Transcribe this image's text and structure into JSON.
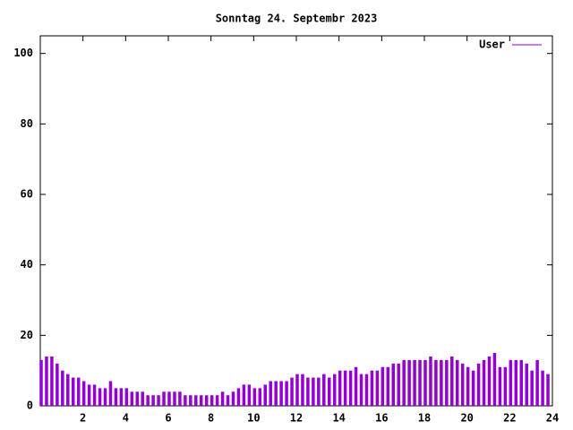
{
  "chart_data": {
    "type": "impulse",
    "title": "Sonntag 24. Septembr 2023",
    "x": [
      0,
      0.25,
      0.5,
      0.75,
      1,
      1.25,
      1.5,
      1.75,
      2,
      2.25,
      2.5,
      2.75,
      3,
      3.25,
      3.5,
      3.75,
      4,
      4.25,
      4.5,
      4.75,
      5,
      5.25,
      5.5,
      5.75,
      6,
      6.25,
      6.5,
      6.75,
      7,
      7.25,
      7.5,
      7.75,
      8,
      8.25,
      8.5,
      8.75,
      9,
      9.25,
      9.5,
      9.75,
      10,
      10.25,
      10.5,
      10.75,
      11,
      11.25,
      11.5,
      11.75,
      12,
      12.25,
      12.5,
      12.75,
      13,
      13.25,
      13.5,
      13.75,
      14,
      14.25,
      14.5,
      14.75,
      15,
      15.25,
      15.5,
      15.75,
      16,
      16.25,
      16.5,
      16.75,
      17,
      17.25,
      17.5,
      17.75,
      18,
      18.25,
      18.5,
      18.75,
      19,
      19.25,
      19.5,
      19.75,
      20,
      20.25,
      20.5,
      20.75,
      21,
      21.25,
      21.5,
      21.75,
      22,
      22.25,
      22.5,
      22.75,
      23,
      23.25,
      23.5,
      23.75
    ],
    "series": [
      {
        "name": "User",
        "color": "#9400d3",
        "values": [
          13,
          14,
          14,
          12,
          10,
          9,
          8,
          8,
          7,
          6,
          6,
          5,
          5,
          7,
          5,
          5,
          5,
          4,
          4,
          4,
          3,
          3,
          3,
          4,
          4,
          4,
          4,
          3,
          3,
          3,
          3,
          3,
          3,
          3,
          4,
          3,
          4,
          5,
          6,
          6,
          5,
          5,
          6,
          7,
          7,
          7,
          7,
          8,
          9,
          9,
          8,
          8,
          8,
          9,
          8,
          9,
          10,
          10,
          10,
          11,
          9,
          9,
          10,
          10,
          11,
          11,
          12,
          12,
          13,
          13,
          13,
          13,
          13,
          14,
          13,
          13,
          13,
          14,
          13,
          12,
          11,
          10,
          12,
          13,
          14,
          15,
          11,
          11,
          13,
          13,
          13,
          12,
          10,
          13,
          10,
          9
        ]
      }
    ],
    "xlim": [
      0,
      24
    ],
    "xticks": [
      2,
      4,
      6,
      8,
      10,
      12,
      14,
      16,
      18,
      20,
      22,
      24
    ],
    "ylim": [
      0,
      105
    ],
    "yticks": [
      0,
      20,
      40,
      60,
      80,
      100
    ],
    "legend": "top-right"
  }
}
